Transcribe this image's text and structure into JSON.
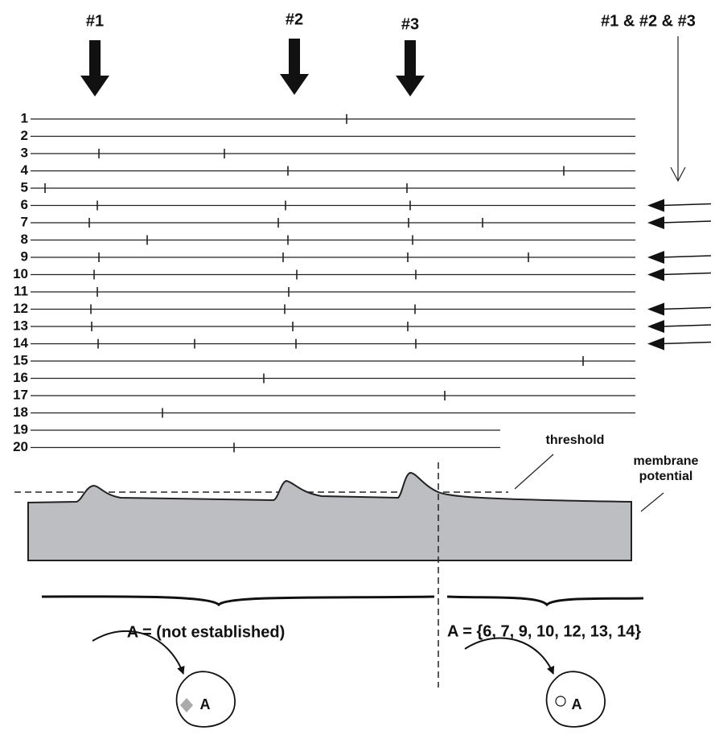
{
  "headers": [
    "#1",
    "#2",
    "#3",
    "#1 & #2 & #3"
  ],
  "rows": [
    "1",
    "2",
    "3",
    "4",
    "5",
    "6",
    "7",
    "8",
    "9",
    "10",
    "11",
    "12",
    "13",
    "14",
    "15",
    "16",
    "17",
    "18",
    "19",
    "20"
  ],
  "threshold": "threshold",
  "membrane": [
    "membrane",
    "potential"
  ],
  "assemblies": [
    "A = (not established)",
    "A = {6, 7, 9, 10, 12, 13, 14}"
  ],
  "neurons": [
    "A",
    "A"
  ]
}
